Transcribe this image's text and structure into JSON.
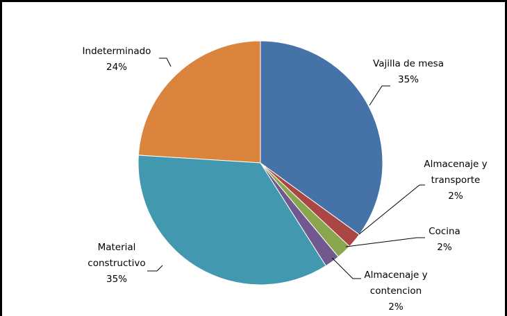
{
  "chart_data": {
    "type": "pie",
    "categories": [
      "Vajilla de mesa",
      "Almacenaje y transporte",
      "Cocina",
      "Almacenaje y contencion",
      "Material constructivo",
      "Indeterminado"
    ],
    "values": [
      35,
      2,
      2,
      2,
      35,
      24
    ],
    "value_labels": [
      "35%",
      "2%",
      "2%",
      "2%",
      "35%",
      "24%"
    ],
    "colors": [
      "#4572a7",
      "#aa4643",
      "#89a54e",
      "#71588f",
      "#4198af",
      "#db843d"
    ]
  }
}
